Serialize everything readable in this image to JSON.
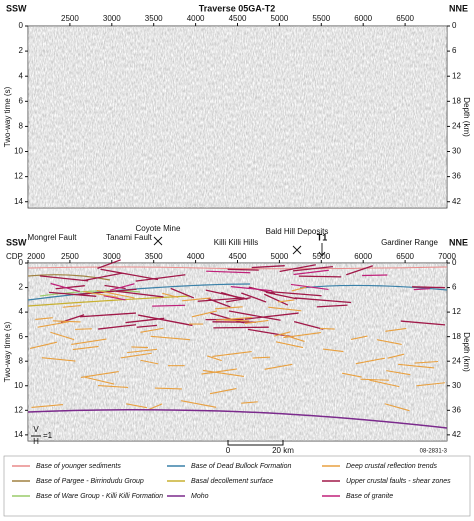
{
  "top_panel": {
    "title": "Traverse 05GA-T2",
    "left_direction": "SSW",
    "right_direction": "NNE",
    "xlim": [
      2000,
      7000
    ],
    "xticks": [
      2500,
      3000,
      3500,
      4000,
      4500,
      5000,
      5500,
      6000,
      6500
    ],
    "y_label": "Two-way time (s)",
    "ylim": [
      0,
      14.5
    ],
    "yticks": [
      0,
      2,
      4,
      6,
      8,
      10,
      12,
      14
    ],
    "y2_label": "Depth (km)",
    "y2lim": [
      0,
      43.5
    ],
    "y2ticks": [
      0,
      6,
      12,
      18,
      24,
      30,
      36,
      42
    ]
  },
  "bottom_panel": {
    "left_direction": "SSW",
    "right_direction": "NNE",
    "x_label": "CDP",
    "xlim": [
      2000,
      7000
    ],
    "xticks": [
      2000,
      2500,
      3000,
      3500,
      4000,
      4500,
      5000,
      5500,
      6000,
      6500,
      7000
    ],
    "y_label": "Two-way time (s)",
    "ylim": [
      0,
      14.5
    ],
    "yticks": [
      0,
      2,
      4,
      6,
      8,
      10,
      12,
      14
    ],
    "y2_label": "Depth (km)",
    "y2lim": [
      0,
      43.5
    ],
    "y2ticks": [
      0,
      6,
      12,
      18,
      24,
      30,
      36,
      42
    ],
    "annotations": [
      "Mongrel Fault",
      "Tanami Fault",
      "Coyote Mine",
      "Killi Killi Hills",
      "Bald Hill Deposits",
      "T1",
      "Gardiner Range"
    ],
    "vh_top": "V",
    "vh_bottom": "H",
    "vh_value": "=1",
    "scale_start": "0",
    "scale_end": "20 km",
    "figure_id": "08-2831-3"
  },
  "legend": [
    {
      "label": "Base of younger sediments",
      "color": "#e88a8a"
    },
    {
      "label": "Base of Pargee - Birrindudu Group",
      "color": "#a08040"
    },
    {
      "label": "Base of Ware Group - Killi Killi Formation",
      "color": "#9acb6a"
    },
    {
      "label": "Base of Dead Bullock Formation",
      "color": "#3a80a8"
    },
    {
      "label": "Basal decollement surface",
      "color": "#c8b030"
    },
    {
      "label": "Moho",
      "color": "#7b2a8c"
    },
    {
      "label": "Deep crustal reflection trends",
      "color": "#e8a040"
    },
    {
      "label": "Upper crustal faults - shear zones",
      "color": "#a01848"
    },
    {
      "label": "Base of granite",
      "color": "#c0207a"
    }
  ]
}
